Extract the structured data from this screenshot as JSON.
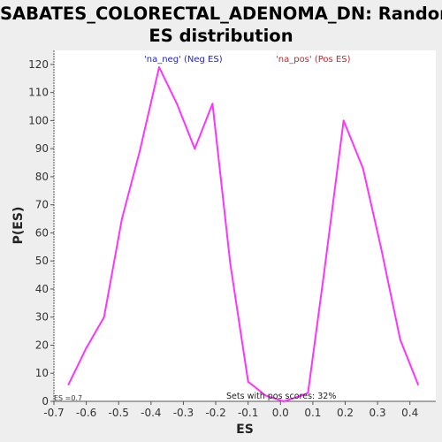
{
  "title_line1": "SABATES_COLORECTAL_ADENOMA_DN: Random",
  "title_line2": "ES distribution",
  "chart_data": {
    "type": "line",
    "title": "SABATES_COLORECTAL_ADENOMA_DN: Random ES distribution",
    "xlabel": "ES",
    "ylabel": "P(ES)",
    "xlim": [
      -0.7,
      0.48
    ],
    "ylim": [
      0,
      125
    ],
    "x_ticks": [
      -0.7,
      -0.6,
      -0.5,
      -0.4,
      -0.3,
      -0.2,
      -0.1,
      0.0,
      0.1,
      0.2,
      0.3,
      0.4
    ],
    "x_tick_labels": [
      "-0.7",
      "-0.6",
      "-0.5",
      "-0.4",
      "-0.3",
      "-0.2",
      "-0.1",
      "0.0",
      "0.1",
      "0.2",
      "0.3",
      "0.4"
    ],
    "y_ticks": [
      0,
      10,
      20,
      30,
      40,
      50,
      60,
      70,
      80,
      90,
      100,
      110,
      120
    ],
    "y_tick_labels": [
      "0",
      "10",
      "20",
      "30",
      "40",
      "50",
      "60",
      "70",
      "80",
      "90",
      "100",
      "110",
      "120"
    ],
    "grid": false,
    "series": [
      {
        "color": "#ff33ff",
        "x": [
          -0.655,
          -0.6,
          -0.545,
          -0.49,
          -0.435,
          -0.375,
          -0.32,
          -0.265,
          -0.21,
          -0.155,
          -0.1,
          -0.045,
          0.01,
          0.065,
          0.085,
          0.135,
          0.195,
          0.255,
          0.31,
          0.37,
          0.425
        ],
        "y": [
          6,
          19,
          30,
          65,
          89,
          119,
          106,
          90,
          106,
          49,
          7,
          2,
          0,
          2,
          3,
          46,
          100,
          83,
          55,
          22,
          6
        ]
      }
    ],
    "legend": [
      {
        "label": "'na_neg' (Neg ES)",
        "color": "#2222cc"
      },
      {
        "label": "'na_pos' (Pos ES)",
        "color": "#cc2222"
      }
    ],
    "annotations": {
      "bottom_right": "Sets with pos scores: 32%",
      "bottom_left": "ES =0.7"
    }
  }
}
